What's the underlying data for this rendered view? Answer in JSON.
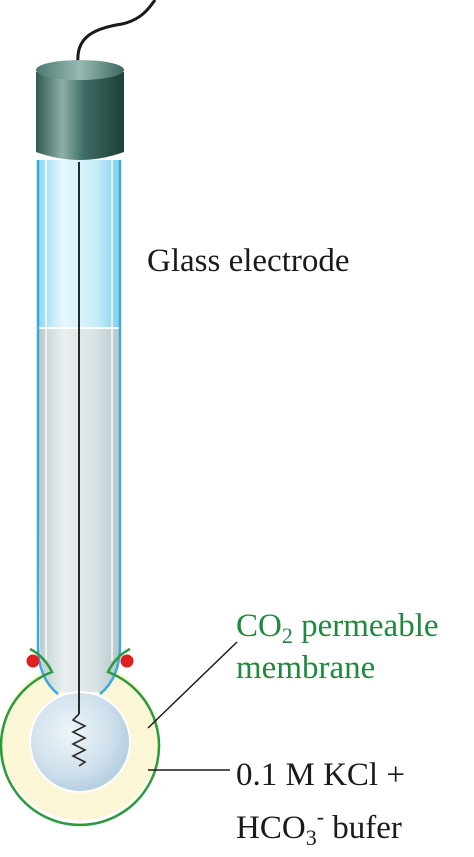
{
  "labels": {
    "glass_electrode": "Glass electrode",
    "membrane_co": "CO",
    "membrane_sub": "2",
    "membrane_rest": " permeable",
    "membrane_line2": "membrane",
    "buffer_line1": "0.1 M KCl +",
    "buffer_hco": "HCO",
    "buffer_sub": "3",
    "buffer_sup": "-",
    "buffer_rest": " bufer"
  },
  "colors": {
    "membrane_text": "#1f8a3e",
    "membrane_ring": "#2a9a3a",
    "glass_outline": "#3aa9e0",
    "cap": "#2f5e57",
    "buffer_fill": "#fbf6d5",
    "clip_dots": "#e02020"
  }
}
